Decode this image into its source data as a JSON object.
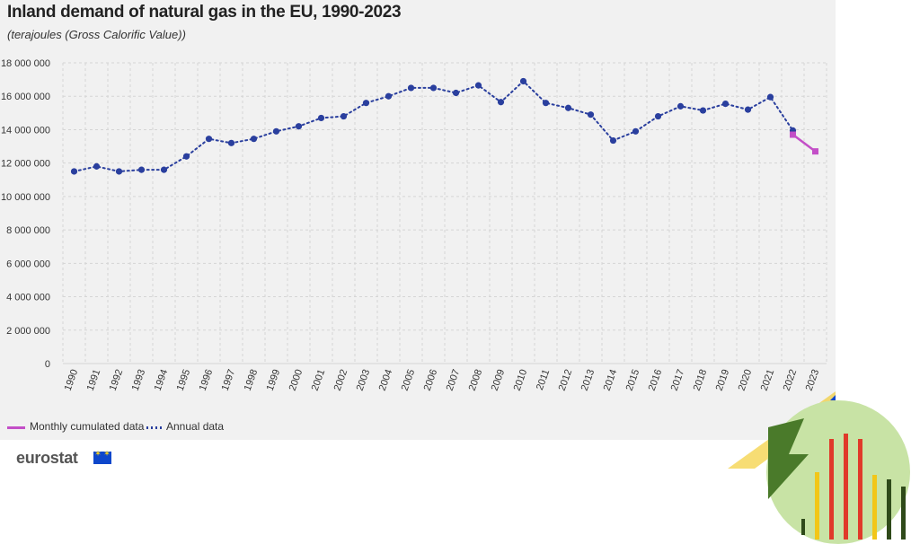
{
  "header": {
    "title": "Inland demand of natural gas in the EU, 1990-2023",
    "subtitle": "(terajoules (Gross Calorific Value))"
  },
  "legend": {
    "monthly_label": "Monthly cumulated data",
    "annual_label": "Annual data"
  },
  "footer": {
    "logo_text": "eurostat"
  },
  "colors": {
    "annual": "#2a3f9e",
    "monthly": "#c34fc7",
    "grid": "#d5d5d5",
    "panel": "#f1f1f1"
  },
  "chart_data": {
    "type": "line",
    "title": "Inland demand of natural gas in the EU, 1990-2023",
    "subtitle": "(terajoules (Gross Calorific Value))",
    "xlabel": "",
    "ylabel": "",
    "ylim": [
      0,
      18000000
    ],
    "yticks": [
      0,
      2000000,
      4000000,
      6000000,
      8000000,
      10000000,
      12000000,
      14000000,
      16000000,
      18000000
    ],
    "ytick_labels": [
      "0",
      "2 000 000",
      "4 000 000",
      "6 000 000",
      "8 000 000",
      "10 000 000",
      "12 000 000",
      "14 000 000",
      "16 000 000",
      "18 000 000"
    ],
    "categories": [
      "1990",
      "1991",
      "1992",
      "1993",
      "1994",
      "1995",
      "1996",
      "1997",
      "1998",
      "1999",
      "2000",
      "2001",
      "2002",
      "2003",
      "2004",
      "2005",
      "2006",
      "2007",
      "2008",
      "2009",
      "2010",
      "2011",
      "2012",
      "2013",
      "2014",
      "2015",
      "2016",
      "2017",
      "2018",
      "2019",
      "2020",
      "2021",
      "2022",
      "2023"
    ],
    "grid": true,
    "legend_position": "bottom-left",
    "series": [
      {
        "name": "Annual data",
        "style": "dotted-with-markers",
        "x": [
          "1990",
          "1991",
          "1992",
          "1993",
          "1994",
          "1995",
          "1996",
          "1997",
          "1998",
          "1999",
          "2000",
          "2001",
          "2002",
          "2003",
          "2004",
          "2005",
          "2006",
          "2007",
          "2008",
          "2009",
          "2010",
          "2011",
          "2012",
          "2013",
          "2014",
          "2015",
          "2016",
          "2017",
          "2018",
          "2019",
          "2020",
          "2021",
          "2022"
        ],
        "values": [
          11500000,
          11800000,
          11500000,
          11600000,
          11600000,
          12400000,
          13450000,
          13200000,
          13450000,
          13900000,
          14200000,
          14700000,
          14800000,
          15600000,
          16000000,
          16500000,
          16500000,
          16200000,
          16650000,
          15650000,
          16900000,
          15600000,
          15300000,
          14900000,
          13350000,
          13900000,
          14800000,
          15400000,
          15150000,
          15550000,
          15200000,
          15950000,
          13950000
        ]
      },
      {
        "name": "Monthly cumulated data",
        "style": "solid-with-square-markers",
        "x": [
          "2022",
          "2023"
        ],
        "values": [
          13700000,
          12700000
        ]
      }
    ]
  }
}
